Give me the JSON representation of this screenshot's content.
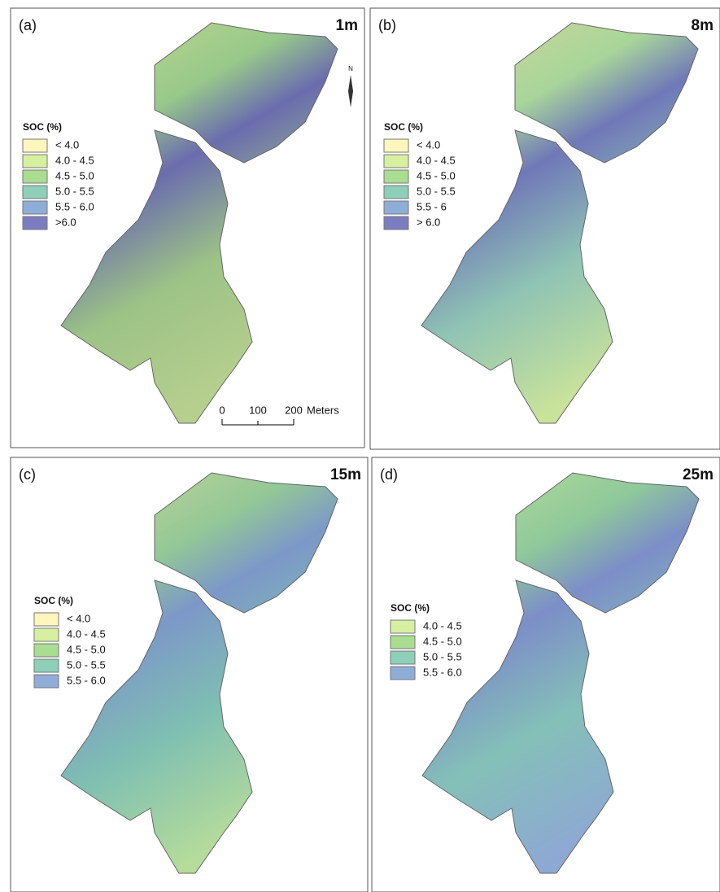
{
  "panels": [
    {
      "label": "(a)",
      "resolution": "1m",
      "legend": {
        "title": "SOC (%)",
        "items": [
          {
            "label": "< 4.0",
            "color": "#fff6bd"
          },
          {
            "label": "4.0 - 4.5",
            "color": "#d6f0a0"
          },
          {
            "label": "4.5 - 5.0",
            "color": "#a9dd8f"
          },
          {
            "label": "5.0 - 5.5",
            "color": "#8ecfb9"
          },
          {
            "label": "5.5 - 6.0",
            "color": "#8eaed8"
          },
          {
            "label": ">6.0",
            "color": "#7c7cc2"
          }
        ]
      }
    },
    {
      "label": "(b)",
      "resolution": "8m",
      "legend": {
        "title": "SOC (%)",
        "items": [
          {
            "label": "< 4.0",
            "color": "#fff6bd"
          },
          {
            "label": "4.0 - 4.5",
            "color": "#d6f0a0"
          },
          {
            "label": "4.5 - 5.0",
            "color": "#a9dd8f"
          },
          {
            "label": "5.0 - 5.5",
            "color": "#8ecfb9"
          },
          {
            "label": "5.5 - 6",
            "color": "#8eaed8"
          },
          {
            "label": "> 6.0",
            "color": "#7c7cc2"
          }
        ]
      }
    },
    {
      "label": "(c)",
      "resolution": "15m",
      "legend": {
        "title": "SOC (%)",
        "items": [
          {
            "label": "< 4.0",
            "color": "#fff6bd"
          },
          {
            "label": "4.0 - 4.5",
            "color": "#d6f0a0"
          },
          {
            "label": "4.5 - 5.0",
            "color": "#a9dd8f"
          },
          {
            "label": "5.0 - 5.5",
            "color": "#8ecfb9"
          },
          {
            "label": "5.5 - 6.0",
            "color": "#8eaed8"
          }
        ]
      }
    },
    {
      "label": "(d)",
      "resolution": "25m",
      "legend": {
        "title": "SOC (%)",
        "items": [
          {
            "label": "4.0 - 4.5",
            "color": "#d6f0a0"
          },
          {
            "label": "4.5 - 5.0",
            "color": "#a9dd8f"
          },
          {
            "label": "5.0 - 5.5",
            "color": "#8ecfb9"
          },
          {
            "label": "5.5 - 6.0",
            "color": "#8eaed8"
          }
        ]
      }
    }
  ],
  "scale_bar": {
    "ticks": [
      "0",
      "100",
      "200"
    ],
    "unit": "Meters"
  },
  "north_arrow": "N"
}
